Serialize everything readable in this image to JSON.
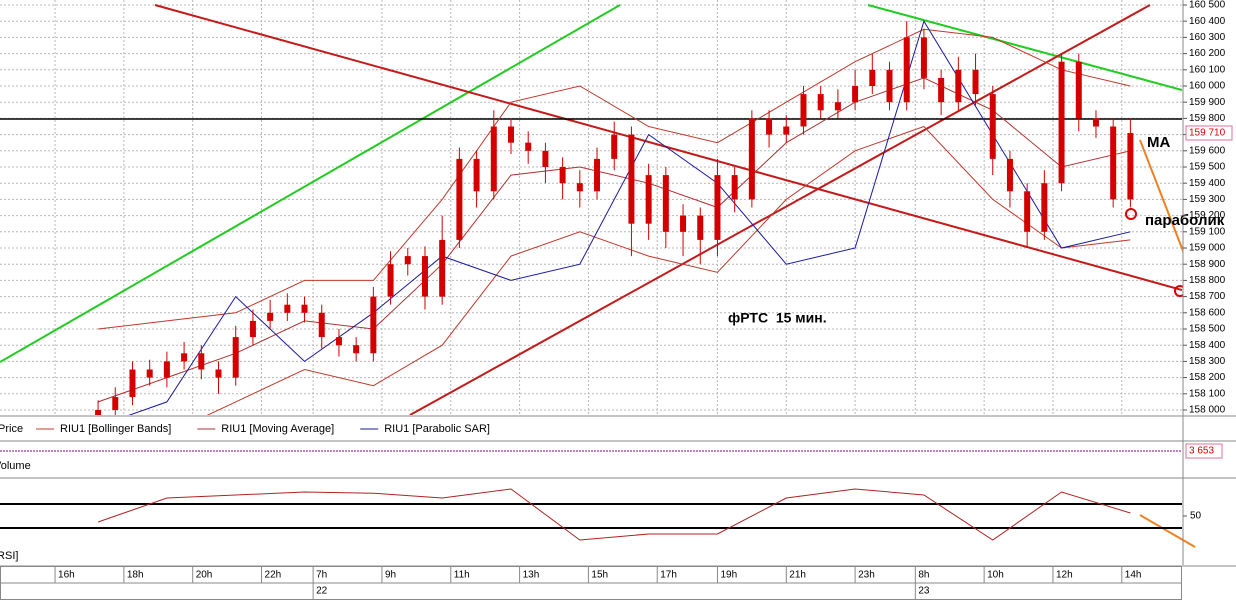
{
  "chart_data": [
    {
      "type": "candlestick",
      "name": "Price",
      "color": "#d40000",
      "x": [
        5,
        7,
        9,
        11,
        13,
        15,
        17,
        19,
        21,
        23,
        25,
        27,
        29,
        31,
        33,
        35,
        37,
        39,
        41,
        43,
        45,
        47,
        49,
        51,
        53,
        55,
        57,
        59,
        61,
        63,
        65,
        67,
        69,
        71,
        73,
        75,
        77,
        79,
        81,
        83,
        85,
        87,
        89,
        91,
        93,
        95,
        97,
        99,
        101,
        103,
        105,
        107,
        109,
        111,
        113,
        115,
        117,
        119,
        121,
        123,
        125
      ],
      "open": [
        157950,
        158000,
        158080,
        158250,
        158200,
        158300,
        158350,
        158250,
        158200,
        158450,
        158550,
        158600,
        158650,
        158600,
        158450,
        158400,
        158350,
        158700,
        158900,
        158950,
        158700,
        159050,
        159550,
        159350,
        159750,
        159650,
        159600,
        159500,
        159400,
        159350,
        159550,
        159700,
        159150,
        159450,
        159100,
        159200,
        159050,
        159450,
        159300,
        159800,
        159700,
        159750,
        159950,
        159850,
        159900,
        160000,
        160100,
        159900,
        160300,
        160050,
        159900,
        160100,
        159950,
        159550,
        159350,
        159100,
        159400,
        160150,
        159800,
        159750,
        159300
      ],
      "high": [
        158060,
        158140,
        158300,
        158310,
        158360,
        158420,
        158400,
        158300,
        158520,
        158620,
        158680,
        158720,
        158700,
        158650,
        158500,
        158450,
        158760,
        158980,
        159000,
        159010,
        159200,
        159620,
        159600,
        159850,
        159800,
        159720,
        159650,
        159560,
        159480,
        159620,
        159780,
        159750,
        159520,
        159500,
        159270,
        159250,
        159550,
        159500,
        159850,
        159850,
        159820,
        160000,
        160000,
        159980,
        160100,
        160200,
        160150,
        160400,
        160350,
        160100,
        160180,
        160200,
        160000,
        159600,
        159400,
        159480,
        160200,
        160200,
        159850,
        159800,
        159800
      ],
      "low": [
        157900,
        157940,
        158030,
        158150,
        158140,
        158250,
        158190,
        158100,
        158150,
        158400,
        158500,
        158550,
        158540,
        158380,
        158330,
        158300,
        158300,
        158650,
        158830,
        158620,
        158650,
        159000,
        159250,
        159300,
        159580,
        159520,
        159400,
        159300,
        159250,
        159300,
        159480,
        158950,
        159050,
        159000,
        158950,
        158900,
        158950,
        159220,
        159250,
        159620,
        159650,
        159700,
        159800,
        159800,
        159850,
        159950,
        159850,
        159850,
        159980,
        159820,
        159850,
        159880,
        159450,
        159250,
        159000,
        159050,
        159350,
        159720,
        159680,
        159250,
        159250
      ],
      "close": [
        158000,
        158080,
        158250,
        158200,
        158300,
        158350,
        158250,
        158200,
        158450,
        158550,
        158600,
        158650,
        158600,
        158450,
        158400,
        158350,
        158700,
        158900,
        158950,
        158700,
        159050,
        159550,
        159350,
        159750,
        159650,
        159600,
        159500,
        159400,
        159350,
        159550,
        159700,
        159150,
        159450,
        159100,
        159200,
        159050,
        159450,
        159300,
        159800,
        159700,
        159750,
        159950,
        159850,
        159900,
        160000,
        160100,
        159900,
        160300,
        160050,
        159900,
        160100,
        159950,
        159550,
        159350,
        159100,
        159400,
        160150,
        159800,
        159750,
        159300,
        159710
      ],
      "overlay_x": [
        5,
        13,
        21,
        29,
        37,
        45,
        53,
        61,
        69,
        77,
        85,
        93,
        101,
        109,
        117,
        125
      ],
      "overlays": [
        {
          "name": "RIU1 [Bollinger Bands]",
          "color": "#c0392b",
          "upper": [
            158500,
            158550,
            158600,
            158800,
            158800,
            159300,
            159900,
            160000,
            159750,
            159650,
            159900,
            160150,
            160350,
            160300,
            160100,
            160000
          ],
          "lower": [
            157700,
            157850,
            158050,
            158250,
            158150,
            158400,
            158950,
            159100,
            158950,
            158850,
            159300,
            159600,
            159750,
            159300,
            159000,
            159050
          ]
        },
        {
          "name": "RIU1 [Moving Average]",
          "color": "#b03030",
          "values": [
            158050,
            158200,
            158350,
            158550,
            158500,
            158900,
            159450,
            159500,
            159400,
            159250,
            159650,
            159900,
            160050,
            159850,
            159500,
            159600
          ]
        },
        {
          "name": "RIU1 [Parabolic SAR]",
          "color": "#1a1aa0",
          "values": [
            157900,
            158050,
            158700,
            158300,
            158600,
            158950,
            158800,
            158900,
            159700,
            159400,
            158900,
            159000,
            160400,
            159700,
            159000,
            159100
          ]
        }
      ],
      "xlim": [
        -6.4,
        131
      ],
      "ylim": [
        158000,
        160500
      ],
      "yticks": [
        {
          "value": 158000,
          "label": "158 000"
        },
        {
          "value": 158100,
          "label": "158 100"
        },
        {
          "value": 158200,
          "label": "158 200"
        },
        {
          "value": 158300,
          "label": "158 300"
        },
        {
          "value": 158400,
          "label": "158 400"
        },
        {
          "value": 158500,
          "label": "158 500"
        },
        {
          "value": 158600,
          "label": "158 600"
        },
        {
          "value": 158700,
          "label": "158 700"
        },
        {
          "value": 158800,
          "label": "158 800"
        },
        {
          "value": 158900,
          "label": "158 900"
        },
        {
          "value": 159000,
          "label": "159 000"
        },
        {
          "value": 159100,
          "label": "159 100"
        },
        {
          "value": 159200,
          "label": "159 200"
        },
        {
          "value": 159300,
          "label": "159 300"
        },
        {
          "value": 159400,
          "label": "159 400"
        },
        {
          "value": 159500,
          "label": "159 500"
        },
        {
          "value": 159600,
          "label": "159 600"
        },
        {
          "value": 159700,
          "label": "159 700"
        },
        {
          "value": 159800,
          "label": "159 800"
        },
        {
          "value": 159900,
          "label": "159 900"
        },
        {
          "value": 160000,
          "label": "160 000"
        },
        {
          "value": 160100,
          "label": "160 100"
        },
        {
          "value": 160200,
          "label": "160 200"
        },
        {
          "value": 160300,
          "label": "160 300"
        },
        {
          "value": 160400,
          "label": "160 400"
        },
        {
          "value": 160500,
          "label": "160 500"
        }
      ],
      "xticks": [
        {
          "value": 0,
          "label": "16h"
        },
        {
          "value": 8,
          "label": "18h"
        },
        {
          "value": 16,
          "label": "20h"
        },
        {
          "value": 24,
          "label": "22h"
        },
        {
          "value": 30,
          "label": "7h"
        },
        {
          "value": 38,
          "label": "9h"
        },
        {
          "value": 46,
          "label": "11h"
        },
        {
          "value": 54,
          "label": "13h"
        },
        {
          "value": 62,
          "label": "15h"
        },
        {
          "value": 70,
          "label": "17h"
        },
        {
          "value": 77,
          "label": "19h"
        },
        {
          "value": 85,
          "label": "21h"
        },
        {
          "value": 93,
          "label": "23h"
        },
        {
          "value": 100,
          "label": "8h"
        },
        {
          "value": 108,
          "label": "10h"
        },
        {
          "value": 116,
          "label": "12h"
        },
        {
          "value": 124,
          "label": "14h"
        }
      ],
      "date_ticks": [
        {
          "value": 30,
          "label": "22"
        },
        {
          "value": 100,
          "label": "23"
        }
      ],
      "last_price": {
        "value": 159710,
        "label": "159 710"
      },
      "grid": true,
      "annotations": [
        "MA",
        "параболик",
        "фРТС  15 мин."
      ]
    },
    {
      "type": "volume",
      "title": "Volume",
      "color": "#800080",
      "last_value": {
        "value": 3653,
        "label": "3 653"
      }
    },
    {
      "type": "line",
      "title": "[RSI]",
      "color": "#b22222",
      "x": [
        5,
        13,
        21,
        29,
        37,
        45,
        53,
        61,
        69,
        77,
        85,
        93,
        101,
        109,
        117,
        125
      ],
      "values": [
        40,
        80,
        85,
        90,
        88,
        80,
        95,
        10,
        20,
        20,
        80,
        95,
        85,
        10,
        90,
        55
      ],
      "levels": [
        30,
        70
      ],
      "ylim": [
        0,
        100
      ],
      "yticks": [
        50
      ]
    }
  ]
}
